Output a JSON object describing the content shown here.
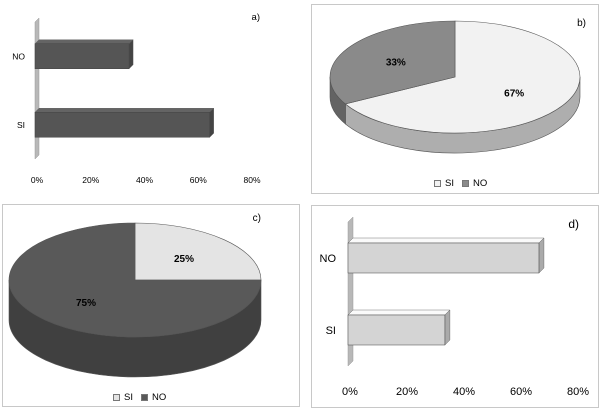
{
  "chart_data": [
    {
      "id": "a",
      "panel_label": "a)",
      "type": "bar",
      "orientation": "horizontal",
      "categories": [
        "NO",
        "SI"
      ],
      "values": [
        35,
        65
      ],
      "xlim": [
        0,
        80
      ],
      "tick_labels": [
        "0%",
        "20%",
        "40%",
        "60%",
        "80%"
      ],
      "colors": [
        "#555555"
      ],
      "grid": false,
      "legend": false
    },
    {
      "id": "b",
      "panel_label": "b)",
      "type": "pie",
      "labels": [
        "SI",
        "NO"
      ],
      "values": [
        67,
        33
      ],
      "data_labels": [
        "67%",
        "33%"
      ],
      "colors": [
        "#f2f2f2",
        "#8a8a8a"
      ],
      "legend": "bottom"
    },
    {
      "id": "c",
      "panel_label": "c)",
      "type": "pie",
      "labels": [
        "SI",
        "NO"
      ],
      "values": [
        25,
        75
      ],
      "data_labels": [
        "25%",
        "75%"
      ],
      "colors": [
        "#e4e4e4",
        "#595959"
      ],
      "legend": "bottom"
    },
    {
      "id": "d",
      "panel_label": "d)",
      "type": "bar",
      "orientation": "horizontal",
      "categories": [
        "NO",
        "SI"
      ],
      "values": [
        67,
        34
      ],
      "xlim": [
        0,
        80
      ],
      "tick_labels": [
        "0%",
        "20%",
        "40%",
        "60%",
        "80%"
      ],
      "colors": [
        "#d4d4d4"
      ],
      "grid": false,
      "legend": false
    }
  ]
}
